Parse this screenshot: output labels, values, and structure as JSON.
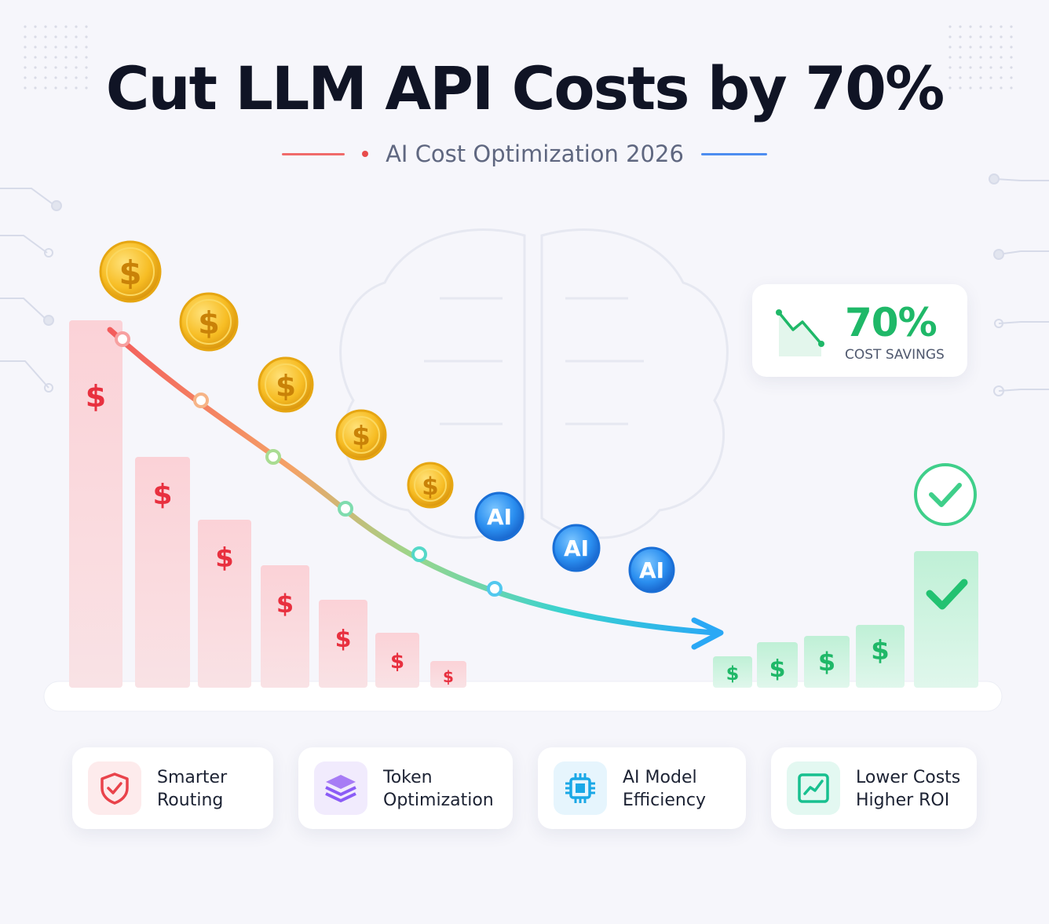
{
  "title": "Cut LLM API Costs by 70%",
  "subtitle": "AI Cost Optimization 2026",
  "savings": {
    "value": "70%",
    "label": "COST SAVINGS",
    "icon": "trend-down-icon"
  },
  "chart_data": {
    "type": "bar",
    "high_cost_bar_count": 7,
    "low_cost_bar_count": 5,
    "bar_label": "$",
    "coin_label": "$",
    "ai_coin_label": "AI",
    "colors": {
      "high_cost": "#f7c6cc",
      "high_cost_symbol": "#e8303f",
      "low_cost": "#c9f0dd",
      "low_cost_symbol": "#1fb868",
      "gold_coin": "#f5b820",
      "ai_coin": "#2b8ff0",
      "check": "#22c271"
    }
  },
  "features": [
    {
      "label": "Smarter\nRouting",
      "icon": "shield-check-icon",
      "color": "#e9434b"
    },
    {
      "label": "Token\nOptimization",
      "icon": "layers-icon",
      "color": "#8b5cf6"
    },
    {
      "label": "AI Model\nEfficiency",
      "icon": "chip-icon",
      "color": "#1aa8e6"
    },
    {
      "label": "Lower Costs\nHigher ROI",
      "icon": "growth-chart-icon",
      "color": "#18c08f"
    }
  ]
}
